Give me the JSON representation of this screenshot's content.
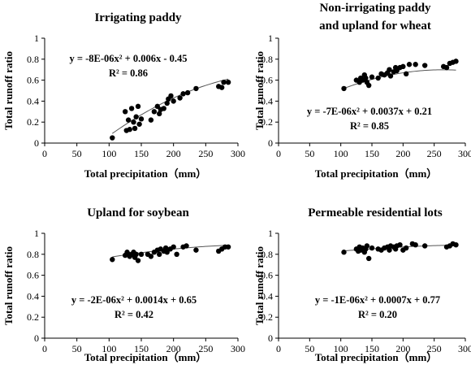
{
  "charts": [
    {
      "type": "scatter",
      "title_lines": [
        "Irrigating paddy"
      ],
      "xlabel": "Total precipitation（mm）",
      "ylabel": "Total runoff ratio",
      "xlim": [
        0,
        300
      ],
      "ylim": [
        0,
        1
      ],
      "xticks": [
        0,
        50,
        100,
        150,
        200,
        250,
        300
      ],
      "yticks": [
        0,
        0.2,
        0.4,
        0.6,
        0.8,
        1
      ],
      "equation": "y = -8E-06x² + 0.006x - 0.45",
      "r2": "R² = 0.86",
      "trend": {
        "a": -8e-06,
        "b": 0.006,
        "c": -0.45,
        "x_range": [
          105,
          285
        ]
      },
      "points": [
        [
          105,
          0.05
        ],
        [
          125,
          0.3
        ],
        [
          127,
          0.12
        ],
        [
          130,
          0.22
        ],
        [
          132,
          0.13
        ],
        [
          135,
          0.33
        ],
        [
          138,
          0.2
        ],
        [
          140,
          0.14
        ],
        [
          142,
          0.25
        ],
        [
          145,
          0.35
        ],
        [
          147,
          0.18
        ],
        [
          150,
          0.23
        ],
        [
          165,
          0.22
        ],
        [
          170,
          0.3
        ],
        [
          175,
          0.35
        ],
        [
          178,
          0.28
        ],
        [
          180,
          0.32
        ],
        [
          185,
          0.33
        ],
        [
          190,
          0.38
        ],
        [
          192,
          0.42
        ],
        [
          196,
          0.45
        ],
        [
          200,
          0.4
        ],
        [
          210,
          0.43
        ],
        [
          215,
          0.47
        ],
        [
          222,
          0.48
        ],
        [
          235,
          0.52
        ],
        [
          270,
          0.54
        ],
        [
          275,
          0.53
        ],
        [
          278,
          0.58
        ],
        [
          285,
          0.58
        ]
      ]
    },
    {
      "type": "scatter",
      "title_lines": [
        "Non-irrigating paddy",
        "and upland for wheat"
      ],
      "xlabel": "Total precipitation（mm）",
      "ylabel": "Total runoff ratio",
      "xlim": [
        0,
        300
      ],
      "ylim": [
        0,
        1
      ],
      "xticks": [
        0,
        50,
        100,
        150,
        200,
        250,
        300
      ],
      "yticks": [
        0,
        0.2,
        0.4,
        0.6,
        0.8,
        1
      ],
      "equation": "y = -7E-06x² + 0.0037x + 0.21",
      "r2": "R² = 0.85",
      "trend": {
        "a": -7e-06,
        "b": 0.0037,
        "c": 0.21,
        "x_range": [
          105,
          285
        ]
      },
      "points": [
        [
          105,
          0.52
        ],
        [
          125,
          0.6
        ],
        [
          130,
          0.58
        ],
        [
          132,
          0.62
        ],
        [
          135,
          0.6
        ],
        [
          138,
          0.65
        ],
        [
          140,
          0.62
        ],
        [
          142,
          0.58
        ],
        [
          145,
          0.55
        ],
        [
          150,
          0.63
        ],
        [
          160,
          0.62
        ],
        [
          165,
          0.66
        ],
        [
          170,
          0.65
        ],
        [
          175,
          0.67
        ],
        [
          178,
          0.7
        ],
        [
          180,
          0.64
        ],
        [
          185,
          0.68
        ],
        [
          188,
          0.72
        ],
        [
          190,
          0.69
        ],
        [
          195,
          0.72
        ],
        [
          200,
          0.73
        ],
        [
          205,
          0.66
        ],
        [
          210,
          0.75
        ],
        [
          220,
          0.75
        ],
        [
          235,
          0.74
        ],
        [
          265,
          0.73
        ],
        [
          270,
          0.72
        ],
        [
          275,
          0.76
        ],
        [
          280,
          0.77
        ],
        [
          285,
          0.78
        ]
      ]
    },
    {
      "type": "scatter",
      "title_lines": [
        "Upland for soybean"
      ],
      "xlabel": "Total precipitation（mm）",
      "ylabel": "Total runoff ratio",
      "xlim": [
        0,
        300
      ],
      "ylim": [
        0,
        1
      ],
      "xticks": [
        0,
        50,
        100,
        150,
        200,
        250,
        300
      ],
      "yticks": [
        0,
        0.2,
        0.4,
        0.6,
        0.8,
        1
      ],
      "equation": "y = -2E-06x² + 0.0014x + 0.65",
      "r2": "R² = 0.42",
      "trend": {
        "a": -2e-06,
        "b": 0.0014,
        "c": 0.65,
        "x_range": [
          105,
          285
        ]
      },
      "points": [
        [
          105,
          0.75
        ],
        [
          125,
          0.79
        ],
        [
          128,
          0.82
        ],
        [
          130,
          0.8
        ],
        [
          132,
          0.78
        ],
        [
          135,
          0.8
        ],
        [
          138,
          0.82
        ],
        [
          140,
          0.77
        ],
        [
          142,
          0.8
        ],
        [
          145,
          0.74
        ],
        [
          150,
          0.8
        ],
        [
          160,
          0.8
        ],
        [
          165,
          0.78
        ],
        [
          170,
          0.82
        ],
        [
          175,
          0.84
        ],
        [
          178,
          0.8
        ],
        [
          180,
          0.85
        ],
        [
          185,
          0.83
        ],
        [
          188,
          0.86
        ],
        [
          190,
          0.82
        ],
        [
          195,
          0.85
        ],
        [
          200,
          0.87
        ],
        [
          205,
          0.8
        ],
        [
          215,
          0.87
        ],
        [
          220,
          0.88
        ],
        [
          235,
          0.84
        ],
        [
          270,
          0.83
        ],
        [
          275,
          0.85
        ],
        [
          280,
          0.87
        ],
        [
          285,
          0.87
        ]
      ]
    },
    {
      "type": "scatter",
      "title_lines": [
        "Permeable residential lots"
      ],
      "xlabel": "Total precipitation（mm）",
      "ylabel": "Total runoff ratio",
      "xlim": [
        0,
        300
      ],
      "ylim": [
        0,
        1
      ],
      "xticks": [
        0,
        50,
        100,
        150,
        200,
        250,
        300
      ],
      "yticks": [
        0,
        0.2,
        0.4,
        0.6,
        0.8,
        1
      ],
      "equation": "y = -1E-06x² + 0.0007x + 0.77",
      "equation_italic_vars": true,
      "r2": "R² = 0.20",
      "trend": {
        "a": -1e-06,
        "b": 0.0007,
        "c": 0.77,
        "x_range": [
          105,
          285
        ]
      },
      "points": [
        [
          105,
          0.82
        ],
        [
          125,
          0.85
        ],
        [
          128,
          0.83
        ],
        [
          130,
          0.87
        ],
        [
          132,
          0.84
        ],
        [
          135,
          0.86
        ],
        [
          138,
          0.82
        ],
        [
          140,
          0.85
        ],
        [
          142,
          0.88
        ],
        [
          145,
          0.76
        ],
        [
          150,
          0.86
        ],
        [
          160,
          0.85
        ],
        [
          165,
          0.84
        ],
        [
          170,
          0.86
        ],
        [
          175,
          0.87
        ],
        [
          178,
          0.84
        ],
        [
          180,
          0.88
        ],
        [
          185,
          0.87
        ],
        [
          188,
          0.85
        ],
        [
          190,
          0.88
        ],
        [
          195,
          0.89
        ],
        [
          200,
          0.84
        ],
        [
          205,
          0.86
        ],
        [
          215,
          0.9
        ],
        [
          220,
          0.89
        ],
        [
          235,
          0.88
        ],
        [
          270,
          0.87
        ],
        [
          275,
          0.88
        ],
        [
          280,
          0.9
        ],
        [
          285,
          0.89
        ]
      ]
    }
  ]
}
